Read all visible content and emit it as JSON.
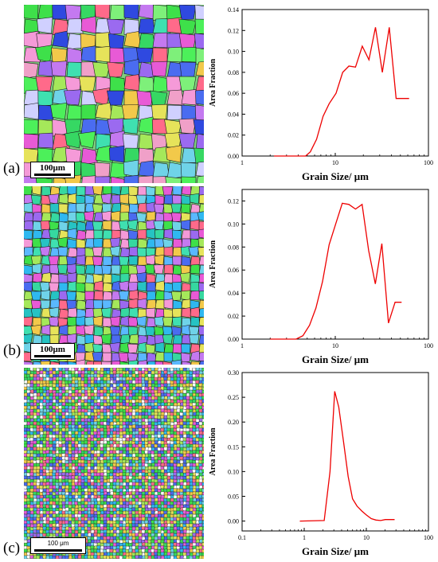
{
  "panels": [
    {
      "label": "(a)",
      "scale_bar": "100μm"
    },
    {
      "label": "(b)",
      "scale_bar": "100μm"
    },
    {
      "label": "(c)",
      "scale_bar": "100 μm"
    }
  ],
  "colors": {
    "series": "#ee0000",
    "axis": "#000000"
  },
  "chart_data": [
    {
      "type": "line",
      "title": "",
      "xlabel": "Grain Size/ μm",
      "ylabel": "Area Fraction",
      "x_scale": "log",
      "xlim": [
        1,
        100
      ],
      "ylim": [
        0,
        0.14
      ],
      "x_ticks": [
        1,
        10,
        100
      ],
      "x_tick_labels": [
        "1",
        "10",
        "100"
      ],
      "y_ticks": [
        0,
        0.02,
        0.04,
        0.06,
        0.08,
        0.1,
        0.12,
        0.14
      ],
      "y_tick_labels": [
        "0.00",
        "0.02",
        "0.04",
        "0.06",
        "0.08",
        "0.10",
        "0.12",
        "0.14"
      ],
      "grid": false,
      "series": [
        {
          "x": [
            2.2,
            4.8,
            5.4,
            6.3,
            7.4,
            8.6,
            10.2,
            12.0,
            14.0,
            16.5,
            19.5,
            23.0,
            27.0,
            32.0,
            38.0,
            45.0,
            53.0,
            62.0
          ],
          "y": [
            0.0,
            0.0,
            0.004,
            0.016,
            0.038,
            0.05,
            0.06,
            0.08,
            0.086,
            0.085,
            0.105,
            0.092,
            0.123,
            0.08,
            0.123,
            0.055,
            0.055,
            0.055
          ]
        }
      ]
    },
    {
      "type": "line",
      "title": "",
      "xlabel": "Grain Size/ μm",
      "ylabel": "Area Fraction",
      "x_scale": "log",
      "xlim": [
        1,
        100
      ],
      "ylim": [
        0,
        0.13
      ],
      "x_ticks": [
        1,
        10,
        100
      ],
      "x_tick_labels": [
        "1",
        "10",
        "100"
      ],
      "y_ticks": [
        0,
        0.02,
        0.04,
        0.06,
        0.08,
        0.1,
        0.12
      ],
      "y_tick_labels": [
        "0.00",
        "0.02",
        "0.04",
        "0.06",
        "0.08",
        "0.10",
        "0.12"
      ],
      "grid": false,
      "series": [
        {
          "x": [
            2.0,
            3.8,
            4.5,
            5.3,
            6.2,
            7.3,
            8.6,
            10.1,
            11.9,
            14.0,
            16.5,
            19.4,
            22.8,
            26.9,
            31.6,
            37.2,
            43.8,
            51.5
          ],
          "y": [
            0.0,
            0.0,
            0.003,
            0.012,
            0.027,
            0.05,
            0.082,
            0.1,
            0.118,
            0.117,
            0.113,
            0.117,
            0.077,
            0.048,
            0.083,
            0.014,
            0.032,
            0.032
          ]
        }
      ]
    },
    {
      "type": "line",
      "title": "",
      "xlabel": "Grain Size/ μm",
      "ylabel": "Area Fraction",
      "x_scale": "log",
      "xlim": [
        0.1,
        100
      ],
      "ylim": [
        -0.02,
        0.3
      ],
      "x_ticks": [
        0.1,
        1,
        10,
        100
      ],
      "x_tick_labels": [
        "0.1",
        "1",
        "10",
        "100"
      ],
      "y_ticks": [
        0,
        0.05,
        0.1,
        0.15,
        0.2,
        0.25,
        0.3
      ],
      "y_tick_labels": [
        "0.00",
        "0.05",
        "0.10",
        "0.15",
        "0.20",
        "0.25",
        "0.30"
      ],
      "grid": false,
      "series": [
        {
          "x": [
            0.85,
            2.1,
            2.6,
            3.1,
            3.6,
            4.3,
            5.1,
            6.0,
            7.1,
            8.5,
            10.1,
            12.0,
            14.3,
            17.0,
            20.2,
            24.0,
            28.5
          ],
          "y": [
            0.0,
            0.001,
            0.1,
            0.262,
            0.23,
            0.16,
            0.09,
            0.045,
            0.03,
            0.02,
            0.012,
            0.005,
            0.002,
            0.001,
            0.003,
            0.003,
            0.003
          ]
        }
      ]
    }
  ]
}
